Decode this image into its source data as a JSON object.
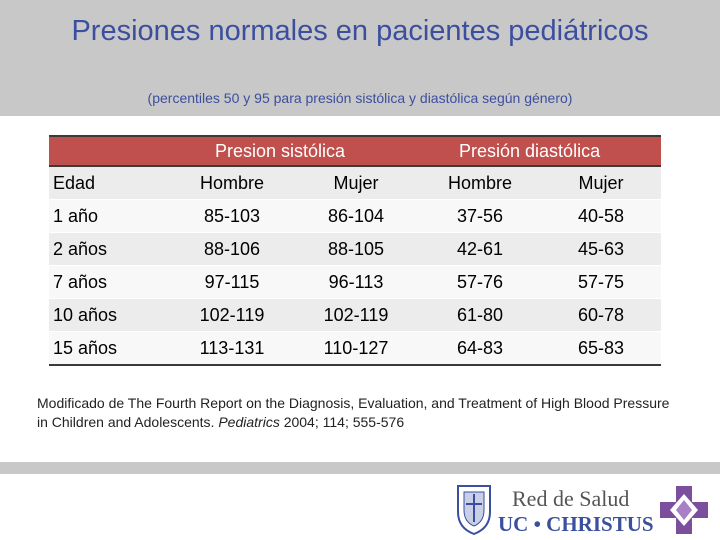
{
  "title": "Presiones normales en pacientes pediátricos",
  "subtitle": "(percentiles 50 y 95 para presión sistólica y diastólica según género)",
  "table": {
    "group_headers": [
      "Presion sistólica",
      "Presión diastólica"
    ],
    "columns": [
      "Edad",
      "Hombre",
      "Mujer",
      "Hombre",
      "Mujer"
    ],
    "rows": [
      [
        "1 año",
        "85-103",
        "86-104",
        "37-56",
        "40-58"
      ],
      [
        "2 años",
        "88-106",
        "88-105",
        "42-61",
        "45-63"
      ],
      [
        "7 años",
        "97-115",
        "96-113",
        "57-76",
        "57-75"
      ],
      [
        "10 años",
        "102-119",
        "102-119",
        "61-80",
        "60-78"
      ],
      [
        "15 años",
        "113-131",
        "110-127",
        "64-83",
        "65-83"
      ]
    ]
  },
  "citation": {
    "part1": "Modificado de The Fourth Report on the Diagnosis, Evaluation, and Treatment of High Blood Pressure in Children and Adolescents.",
    "journal": "Pediatrics",
    "part2": "2004; 114; 555-576"
  },
  "logo": {
    "line1": "Red de Salud",
    "line2": "UC • CHRISTUS"
  },
  "colors": {
    "header_bg": "#c8c8c8",
    "title_blue": "#3b4f9e",
    "table_header_red": "#c0504d",
    "logo_purple": "#7b4f9e"
  }
}
